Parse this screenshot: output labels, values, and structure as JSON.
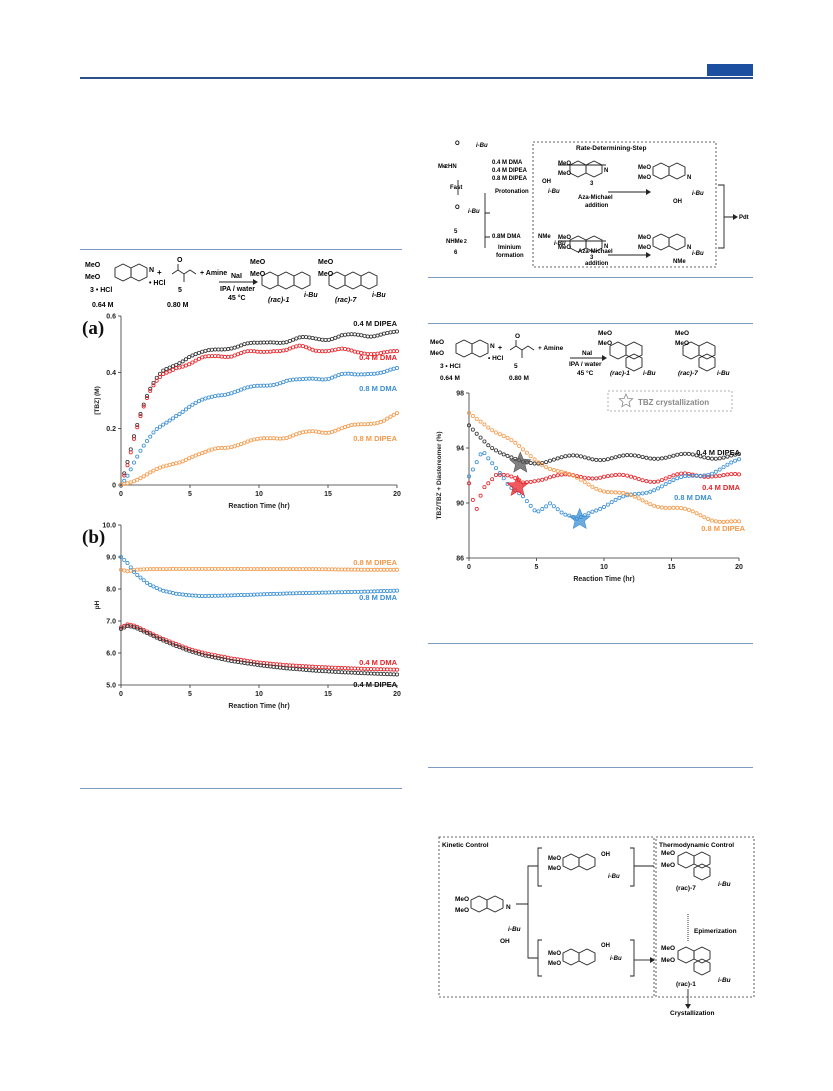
{
  "scheme_left": {
    "reactant1_label": "3 • HCl",
    "reactant1_conc": "0.64 M",
    "reactant2_label": "5",
    "reactant2_conc": "0.80 M",
    "hcl_label": "• HCl",
    "plus_amine": "+ Amine",
    "reagent": "NaI",
    "conditions1": "IPA / water",
    "conditions2": "45 °C",
    "product1": "(rac)-1",
    "product2": "(rac)-7",
    "ibu": "i-Bu",
    "meo": "MeO"
  },
  "panel_a": {
    "label": "(a)",
    "ylabel": "[TBZ] (M)",
    "xlabel": "Reaction Time (hr)",
    "yticks": [
      "0",
      "0.2",
      "0.4",
      "0.6"
    ],
    "xticks": [
      "0",
      "5",
      "10",
      "15",
      "20"
    ]
  },
  "panel_b": {
    "label": "(b)",
    "ylabel": "pH",
    "xlabel": "Reaction Time (hr)",
    "yticks": [
      "5.0",
      "6.0",
      "7.0",
      "8.0",
      "9.0",
      "10.0"
    ],
    "xticks": [
      "0",
      "5",
      "10",
      "15",
      "20"
    ]
  },
  "panel_c": {
    "ylabel": "TBZ/TBZ + Diastereomer (%)",
    "xlabel": "Reaction Time (hr)",
    "yticks": [
      "86",
      "90",
      "94",
      "98"
    ],
    "xticks": [
      "0",
      "5",
      "10",
      "15",
      "20"
    ],
    "crystallization": "TBZ crystallization"
  },
  "mech_top": {
    "rds": "Rate-Determining-Step",
    "fast": "Fast",
    "cond1": "0.4 M DMA",
    "cond2": "0.4 M DIPEA",
    "cond3": "0.8 M DIPEA",
    "protonation": "Protonation",
    "cond4": "0.8M DMA",
    "iminium": "Iminium",
    "formation": "formation",
    "aza1": "Aza-Michael",
    "addition1": "addition",
    "aza2": "Aza-Michael",
    "addition2": "addition",
    "pdt": "Pdt",
    "cmpd3a": "3",
    "cmpd3b": "3",
    "cmpd5": "5",
    "cmpd6": "6",
    "nhme2": "NHMe",
    "me2hn": "Me",
    "nme2": "NMe",
    "oh": "OH",
    "ibu": "i-Bu"
  },
  "mech_bottom": {
    "kinetic": "Kinetic Control",
    "thermo": "Thermodynamic Control",
    "epim": "Epimerization",
    "cryst": "Crystallization",
    "p7": "(rac)-7",
    "p1": "(rac)-1",
    "ibu": "i-Bu",
    "meo": "MeO",
    "oh": "OH"
  },
  "chart_data": [
    {
      "type": "scatter",
      "title": "(a)",
      "xlabel": "Reaction Time (hr)",
      "ylabel": "[TBZ] (M)",
      "xlim": [
        0,
        20
      ],
      "ylim": [
        0,
        0.6
      ],
      "series": [
        {
          "name": "0.4 M DIPEA",
          "color": "#333333",
          "x": [
            0,
            0.5,
            1,
            1.5,
            2,
            2.5,
            3,
            4,
            5,
            6,
            7,
            8,
            9,
            10,
            11,
            12,
            13,
            14,
            15,
            16,
            17,
            18,
            19,
            20
          ],
          "y": [
            0,
            0.09,
            0.19,
            0.27,
            0.33,
            0.37,
            0.4,
            0.43,
            0.46,
            0.47,
            0.48,
            0.49,
            0.5,
            0.5,
            0.51,
            0.51,
            0.52,
            0.52,
            0.52,
            0.53,
            0.53,
            0.53,
            0.54,
            0.54
          ]
        },
        {
          "name": "0.4 M DMA",
          "color": "#e8242a",
          "x": [
            0,
            0.5,
            1,
            1.5,
            2,
            2.5,
            3,
            4,
            5,
            6,
            7,
            8,
            9,
            10,
            11,
            12,
            13,
            14,
            15,
            16,
            17,
            18,
            19,
            20
          ],
          "y": [
            0,
            0.08,
            0.18,
            0.26,
            0.32,
            0.36,
            0.39,
            0.42,
            0.43,
            0.45,
            0.46,
            0.46,
            0.47,
            0.47,
            0.48,
            0.48,
            0.49,
            0.48,
            0.48,
            0.48,
            0.47,
            0.47,
            0.47,
            0.47
          ]
        },
        {
          "name": "0.8 M DMA",
          "color": "#3b8fd4",
          "x": [
            0,
            0.5,
            1,
            1.5,
            2,
            2.5,
            3,
            4,
            5,
            6,
            7,
            8,
            9,
            10,
            11,
            12,
            13,
            14,
            15,
            16,
            17,
            18,
            19,
            20
          ],
          "y": [
            0,
            0.04,
            0.09,
            0.13,
            0.16,
            0.19,
            0.21,
            0.25,
            0.28,
            0.3,
            0.32,
            0.33,
            0.34,
            0.35,
            0.36,
            0.37,
            0.37,
            0.38,
            0.38,
            0.39,
            0.39,
            0.4,
            0.4,
            0.41
          ]
        },
        {
          "name": "0.8 M DIPEA",
          "color": "#f59a4a",
          "x": [
            0,
            0.5,
            1,
            1.5,
            2,
            2.5,
            3,
            4,
            5,
            6,
            7,
            8,
            9,
            10,
            11,
            12,
            13,
            14,
            15,
            16,
            17,
            18,
            19,
            20
          ],
          "y": [
            0,
            0.01,
            0.02,
            0.03,
            0.04,
            0.05,
            0.06,
            0.08,
            0.1,
            0.11,
            0.13,
            0.14,
            0.15,
            0.16,
            0.17,
            0.17,
            0.18,
            0.19,
            0.19,
            0.2,
            0.21,
            0.22,
            0.23,
            0.25
          ]
        }
      ]
    },
    {
      "type": "scatter",
      "title": "(b)",
      "xlabel": "Reaction Time (hr)",
      "ylabel": "pH",
      "xlim": [
        0,
        20
      ],
      "ylim": [
        5.0,
        10.0
      ],
      "series": [
        {
          "name": "0.8 M DIPEA",
          "color": "#f59a4a",
          "x": [
            0,
            0.5,
            1,
            2,
            3,
            4,
            5,
            6,
            8,
            10,
            12,
            14,
            16,
            18,
            20
          ],
          "y": [
            8.6,
            8.55,
            8.6,
            8.62,
            8.62,
            8.63,
            8.63,
            8.63,
            8.63,
            8.62,
            8.62,
            8.62,
            8.61,
            8.6,
            8.6
          ]
        },
        {
          "name": "0.8 M DMA",
          "color": "#3b8fd4",
          "x": [
            0,
            0.5,
            1,
            2,
            3,
            4,
            5,
            6,
            8,
            10,
            12,
            14,
            16,
            18,
            20
          ],
          "y": [
            9.0,
            8.8,
            8.5,
            8.15,
            7.95,
            7.85,
            7.8,
            7.78,
            7.8,
            7.83,
            7.86,
            7.88,
            7.9,
            7.92,
            7.95
          ]
        },
        {
          "name": "0.4 M DMA",
          "color": "#e8242a",
          "x": [
            0,
            0.5,
            1,
            2,
            3,
            4,
            5,
            6,
            8,
            10,
            12,
            14,
            16,
            18,
            20
          ],
          "y": [
            6.8,
            6.9,
            6.85,
            6.65,
            6.45,
            6.28,
            6.12,
            6.0,
            5.83,
            5.7,
            5.62,
            5.57,
            5.53,
            5.5,
            5.48
          ]
        },
        {
          "name": "0.4 M DIPEA",
          "color": "#333333",
          "x": [
            0,
            0.5,
            1,
            2,
            3,
            4,
            5,
            6,
            8,
            10,
            12,
            14,
            16,
            18,
            20
          ],
          "y": [
            6.75,
            6.85,
            6.8,
            6.6,
            6.4,
            6.22,
            6.06,
            5.93,
            5.75,
            5.62,
            5.52,
            5.45,
            5.4,
            5.36,
            5.33
          ]
        }
      ]
    },
    {
      "type": "scatter",
      "title": "",
      "xlabel": "Reaction Time (hr)",
      "ylabel": "TBZ/TBZ + Diastereomer (%)",
      "xlim": [
        0,
        20
      ],
      "ylim": [
        86,
        98
      ],
      "series": [
        {
          "name": "0.4 M DIPEA",
          "color": "#333333",
          "x": [
            0,
            0.5,
            1,
            1.5,
            2,
            2.5,
            3,
            3.5,
            4,
            5,
            6,
            8,
            10,
            12,
            14,
            16,
            18,
            20
          ],
          "y": [
            95.6,
            95.2,
            94.8,
            94.3,
            93.9,
            93.5,
            93.2,
            93.0,
            92.9,
            93.0,
            93.2,
            93.3,
            93.3,
            93.3,
            93.4,
            93.4,
            93.4,
            93.4
          ]
        },
        {
          "name": "0.4 M DMA",
          "color": "#e8242a",
          "x": [
            0,
            0.5,
            1,
            2,
            3,
            4,
            5,
            6,
            8,
            10,
            12,
            14,
            16,
            18,
            20
          ],
          "y": [
            91.5,
            89.5,
            91.2,
            92.0,
            91.8,
            91.5,
            91.8,
            91.9,
            91.9,
            92.0,
            91.8,
            91.7,
            92.0,
            92.1,
            91.9
          ]
        },
        {
          "name": "0.8 M DMA",
          "color": "#3b8fd4",
          "x": [
            0,
            1,
            2,
            3,
            4,
            5,
            6,
            7,
            8,
            9,
            10,
            12,
            14,
            16,
            18,
            20
          ],
          "y": [
            92.0,
            94.0,
            92.5,
            91.0,
            90.5,
            89.5,
            90.0,
            89.0,
            88.8,
            89.5,
            89.8,
            90.5,
            91.2,
            91.8,
            92.3,
            93.0
          ]
        },
        {
          "name": "0.8 M DIPEA",
          "color": "#f59a4a",
          "x": [
            0,
            1,
            2,
            3,
            4,
            5,
            6,
            7,
            8,
            10,
            12,
            14,
            16,
            18,
            20
          ],
          "y": [
            96.5,
            96.0,
            95.2,
            94.5,
            93.8,
            93.2,
            92.6,
            92.1,
            91.7,
            91.0,
            90.4,
            89.9,
            89.4,
            88.9,
            88.5
          ]
        }
      ]
    }
  ]
}
